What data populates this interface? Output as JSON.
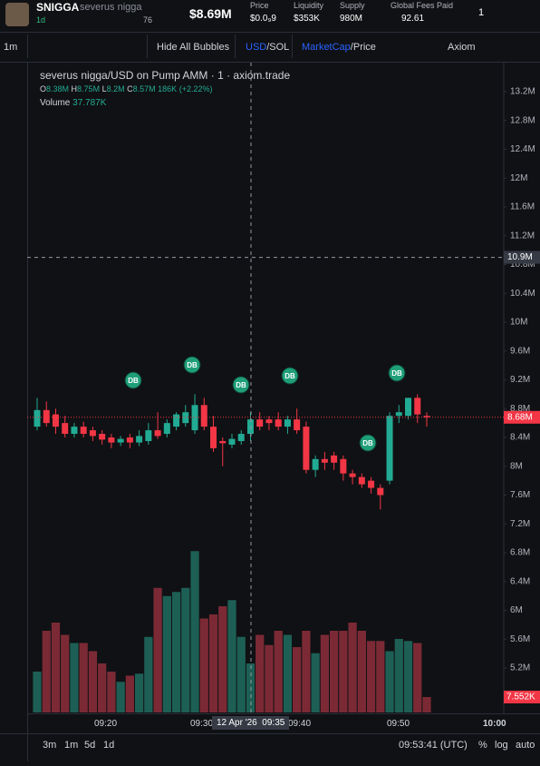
{
  "header": {
    "ticker": "SNIGGA",
    "name": "severus nigga",
    "age": "1d",
    "holders": "76",
    "market_cap": "$8.69M",
    "stats": [
      {
        "label": "Price",
        "value": "$0.0₉9"
      },
      {
        "label": "Liquidity",
        "value": "$353K"
      },
      {
        "label": "Supply",
        "value": "980M"
      },
      {
        "label": "Global Fees Paid",
        "value": "92.61"
      }
    ],
    "count": "1"
  },
  "toolbar": {
    "interval": "1m",
    "bubbles": "Hide All Bubbles",
    "usd": "USD",
    "sol": "/SOL",
    "mcap": "MarketCap",
    "price": "/Price",
    "platform": "Axiom"
  },
  "chart": {
    "type": "candlestick",
    "title": "severus nigga/USD on Pump AMM · 1 · axiom.trade",
    "ohlc": {
      "o_label": "O",
      "o": "8.38M",
      "h_label": "H",
      "h": "8.75M",
      "l_label": "L",
      "l": "8.2M",
      "c_label": "C",
      "c": "8.57M",
      "change": "186K",
      "change_pct": "(+2.22%)"
    },
    "volume_label": "Volume",
    "volume_value": "37.787K",
    "colors": {
      "up": "#22ab94",
      "down": "#f23645",
      "up_volume": "#1d5f55",
      "down_volume": "#7b2a35"
    },
    "candles": {
      "open": [
        8.55,
        8.78,
        8.72,
        8.6,
        8.45,
        8.55,
        8.5,
        8.45,
        8.4,
        8.33,
        8.4,
        8.33,
        8.35,
        8.5,
        8.45,
        8.55,
        8.6,
        8.5,
        8.85,
        8.55,
        8.35,
        8.3,
        8.35,
        8.45,
        8.65,
        8.65,
        8.65,
        8.55,
        8.65,
        8.55,
        7.95,
        8.1,
        8.15,
        8.1,
        7.9,
        7.85,
        7.8,
        7.7,
        7.8,
        8.7,
        8.7,
        8.95,
        8.7
      ],
      "high": [
        8.95,
        8.9,
        8.8,
        8.7,
        8.6,
        8.62,
        8.55,
        8.5,
        8.45,
        8.42,
        8.45,
        8.5,
        8.6,
        8.75,
        8.65,
        8.75,
        8.85,
        9.0,
        8.95,
        8.7,
        8.4,
        8.45,
        8.5,
        8.75,
        8.75,
        8.7,
        8.75,
        8.7,
        8.8,
        8.62,
        8.15,
        8.2,
        8.2,
        8.15,
        7.95,
        7.9,
        7.85,
        7.75,
        8.75,
        8.85,
        8.95,
        9.0,
        8.75
      ],
      "low": [
        8.5,
        8.55,
        8.45,
        8.4,
        8.4,
        8.4,
        8.35,
        8.3,
        8.25,
        8.28,
        8.25,
        8.28,
        8.3,
        8.38,
        8.4,
        8.5,
        8.55,
        8.45,
        8.5,
        8.2,
        8.0,
        8.25,
        8.3,
        8.35,
        8.5,
        8.5,
        8.5,
        8.45,
        8.45,
        7.9,
        7.85,
        7.95,
        7.95,
        7.8,
        7.75,
        7.7,
        7.62,
        7.4,
        7.75,
        8.6,
        8.65,
        8.6,
        8.55
      ],
      "close": [
        8.78,
        8.6,
        8.55,
        8.45,
        8.55,
        8.45,
        8.42,
        8.37,
        8.33,
        8.38,
        8.33,
        8.42,
        8.5,
        8.42,
        8.6,
        8.72,
        8.75,
        8.85,
        8.55,
        8.25,
        8.32,
        8.38,
        8.45,
        8.65,
        8.55,
        8.6,
        8.55,
        8.65,
        8.5,
        7.95,
        8.1,
        8.05,
        8.05,
        7.9,
        7.85,
        7.75,
        7.7,
        7.6,
        8.7,
        8.75,
        8.95,
        8.72,
        8.68
      ]
    },
    "volumes": [
      20,
      40,
      44,
      38,
      34,
      34,
      30,
      24,
      20,
      15,
      18,
      19,
      37,
      61,
      57,
      59,
      61,
      79,
      46,
      48,
      52,
      55,
      37,
      24,
      38,
      33,
      40,
      38,
      32,
      40,
      29,
      38,
      40,
      40,
      44,
      40,
      35,
      35,
      30,
      36,
      35,
      34,
      7.552
    ],
    "ylim": [
      5.2,
      13.2
    ],
    "yticks": [
      {
        "value": 13.2,
        "label": "13.2M"
      },
      {
        "value": 12.8,
        "label": "12.8M"
      },
      {
        "value": 12.4,
        "label": "12.4M"
      },
      {
        "value": 12,
        "label": "12M"
      },
      {
        "value": 11.6,
        "label": "11.6M"
      },
      {
        "value": 11.2,
        "label": "11.2M"
      },
      {
        "value": 10.8,
        "label": "10.8M"
      },
      {
        "value": 10.4,
        "label": "10.4M"
      },
      {
        "value": 10,
        "label": "10M"
      },
      {
        "value": 9.6,
        "label": "9.6M"
      },
      {
        "value": 9.2,
        "label": "9.2M"
      },
      {
        "value": 8.8,
        "label": "8.8M"
      },
      {
        "value": 8.4,
        "label": "8.4M"
      },
      {
        "value": 8,
        "label": "8M"
      },
      {
        "value": 7.6,
        "label": "7.6M"
      },
      {
        "value": 7.2,
        "label": "7.2M"
      },
      {
        "value": 6.8,
        "label": "6.8M"
      },
      {
        "value": 6.4,
        "label": "6.4M"
      },
      {
        "value": 6,
        "label": "6M"
      },
      {
        "value": 5.6,
        "label": "5.6M"
      },
      {
        "value": 5.2,
        "label": "5.2M"
      }
    ],
    "crosshair": {
      "value": 10.9,
      "label": "10.9M"
    },
    "last_price": {
      "value": 8.68,
      "label": "8.68M"
    },
    "last_volume": "7.552K",
    "bubbles": [
      "DB",
      "DB",
      "DB",
      "DB",
      "DB",
      "DB"
    ],
    "time_labels": [
      "09:20",
      "09:30",
      "09:40",
      "09:50",
      "10:00"
    ],
    "crosshair_date": "12 Apr '26",
    "crosshair_time": "09:35"
  },
  "footer": {
    "ranges": [
      "3m",
      "1m",
      "5d",
      "1d"
    ],
    "clock": "09:53:41 (UTC)",
    "pct": "%",
    "log": "log",
    "auto": "auto"
  }
}
